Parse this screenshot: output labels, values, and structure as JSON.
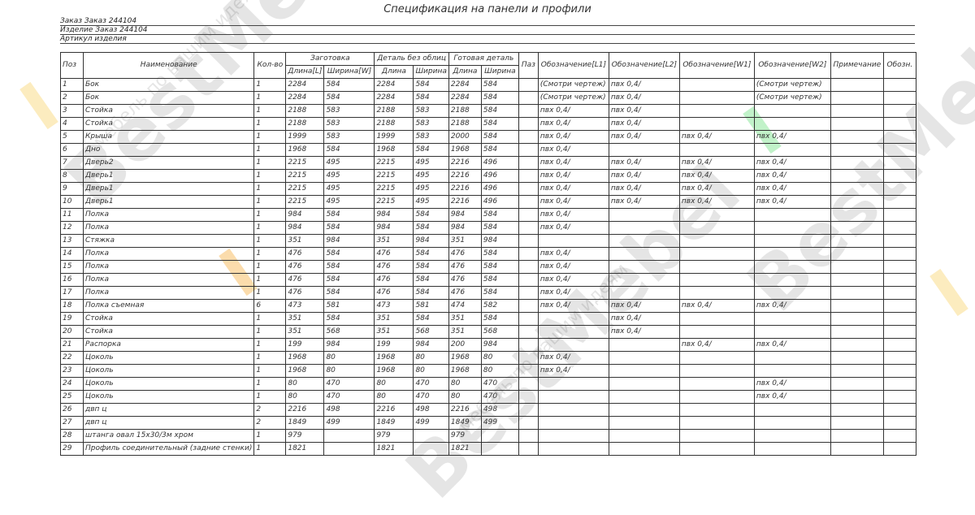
{
  "document": {
    "title": "Спецификация на панели и профили",
    "order_label": "Заказ Заказ 244104",
    "product_label": "Изделие Заказ 244104",
    "article_label": "Артикул изделия"
  },
  "watermark": {
    "brand": "BestMebel",
    "slogan": "мебель по вашим идеям",
    "colors": [
      "#f7c948",
      "#f39c12",
      "#4cd964"
    ]
  },
  "table": {
    "headers": {
      "pos": "Поз",
      "name": "Наименование",
      "qty": "Кол-во",
      "blank": "Заготовка",
      "detail": "Деталь без облиц",
      "finished": "Готовая деталь",
      "blank_len": "Длина[L]",
      "blank_wid": "Ширина[W]",
      "detail_len": "Длина",
      "detail_wid": "Ширина",
      "fin_len": "Длина",
      "fin_wid": "Ширина",
      "groove": "Паз",
      "l1": "Обозначение[L1]",
      "l2": "Обозначение[L2]",
      "w1": "Обозначение[W1]",
      "w2": "Обозначение[W2]",
      "note": "Примечание",
      "desig": "Обозн."
    },
    "rows": [
      [
        "1",
        "Бок",
        "1",
        "2284",
        "584",
        "2284",
        "584",
        "2284",
        "584",
        "",
        "(Смотри чертеж)",
        "пвх 0,4/",
        "",
        "(Смотри чертеж)",
        "",
        ""
      ],
      [
        "2",
        "Бок",
        "1",
        "2284",
        "584",
        "2284",
        "584",
        "2284",
        "584",
        "",
        "(Смотри чертеж)",
        "пвх 0,4/",
        "",
        "(Смотри чертеж)",
        "",
        ""
      ],
      [
        "3",
        "Стойка",
        "1",
        "2188",
        "583",
        "2188",
        "583",
        "2188",
        "584",
        "",
        "пвх 0,4/",
        "пвх 0,4/",
        "",
        "",
        "",
        ""
      ],
      [
        "4",
        "Стойка",
        "1",
        "2188",
        "583",
        "2188",
        "583",
        "2188",
        "584",
        "",
        "пвх 0,4/",
        "пвх 0,4/",
        "",
        "",
        "",
        ""
      ],
      [
        "5",
        "Крыша",
        "1",
        "1999",
        "583",
        "1999",
        "583",
        "2000",
        "584",
        "",
        "пвх 0,4/",
        "пвх 0,4/",
        "пвх 0,4/",
        "пвх 0,4/",
        "",
        ""
      ],
      [
        "6",
        "Дно",
        "1",
        "1968",
        "584",
        "1968",
        "584",
        "1968",
        "584",
        "",
        "пвх 0,4/",
        "",
        "",
        "",
        "",
        ""
      ],
      [
        "7",
        "Дверь2",
        "1",
        "2215",
        "495",
        "2215",
        "495",
        "2216",
        "496",
        "",
        "пвх 0,4/",
        "пвх 0,4/",
        "пвх 0,4/",
        "пвх 0,4/",
        "",
        ""
      ],
      [
        "8",
        "Дверь1",
        "1",
        "2215",
        "495",
        "2215",
        "495",
        "2216",
        "496",
        "",
        "пвх 0,4/",
        "пвх 0,4/",
        "пвх 0,4/",
        "пвх 0,4/",
        "",
        ""
      ],
      [
        "9",
        "Дверь1",
        "1",
        "2215",
        "495",
        "2215",
        "495",
        "2216",
        "496",
        "",
        "пвх 0,4/",
        "пвх 0,4/",
        "пвх 0,4/",
        "пвх 0,4/",
        "",
        ""
      ],
      [
        "10",
        "Дверь1",
        "1",
        "2215",
        "495",
        "2215",
        "495",
        "2216",
        "496",
        "",
        "пвх 0,4/",
        "пвх 0,4/",
        "пвх 0,4/",
        "пвх 0,4/",
        "",
        ""
      ],
      [
        "11",
        "Полка",
        "1",
        "984",
        "584",
        "984",
        "584",
        "984",
        "584",
        "",
        "пвх 0,4/",
        "",
        "",
        "",
        "",
        ""
      ],
      [
        "12",
        "Полка",
        "1",
        "984",
        "584",
        "984",
        "584",
        "984",
        "584",
        "",
        "пвх 0,4/",
        "",
        "",
        "",
        "",
        ""
      ],
      [
        "13",
        "Стяжка",
        "1",
        "351",
        "984",
        "351",
        "984",
        "351",
        "984",
        "",
        "",
        "",
        "",
        "",
        "",
        ""
      ],
      [
        "14",
        "Полка",
        "1",
        "476",
        "584",
        "476",
        "584",
        "476",
        "584",
        "",
        "пвх 0,4/",
        "",
        "",
        "",
        "",
        ""
      ],
      [
        "15",
        "Полка",
        "1",
        "476",
        "584",
        "476",
        "584",
        "476",
        "584",
        "",
        "пвх 0,4/",
        "",
        "",
        "",
        "",
        ""
      ],
      [
        "16",
        "Полка",
        "1",
        "476",
        "584",
        "476",
        "584",
        "476",
        "584",
        "",
        "пвх 0,4/",
        "",
        "",
        "",
        "",
        ""
      ],
      [
        "17",
        "Полка",
        "1",
        "476",
        "584",
        "476",
        "584",
        "476",
        "584",
        "",
        "пвх 0,4/",
        "",
        "",
        "",
        "",
        ""
      ],
      [
        "18",
        "Полка съемная",
        "6",
        "473",
        "581",
        "473",
        "581",
        "474",
        "582",
        "",
        "пвх 0,4/",
        "пвх 0,4/",
        "пвх 0,4/",
        "пвх 0,4/",
        "",
        ""
      ],
      [
        "19",
        "Стойка",
        "1",
        "351",
        "584",
        "351",
        "584",
        "351",
        "584",
        "",
        "",
        "пвх 0,4/",
        "",
        "",
        "",
        ""
      ],
      [
        "20",
        "Стойка",
        "1",
        "351",
        "568",
        "351",
        "568",
        "351",
        "568",
        "",
        "",
        "пвх 0,4/",
        "",
        "",
        "",
        ""
      ],
      [
        "21",
        "Распорка",
        "1",
        "199",
        "984",
        "199",
        "984",
        "200",
        "984",
        "",
        "",
        "",
        "пвх 0,4/",
        "пвх 0,4/",
        "",
        ""
      ],
      [
        "22",
        "Цоколь",
        "1",
        "1968",
        "80",
        "1968",
        "80",
        "1968",
        "80",
        "",
        "пвх 0,4/",
        "",
        "",
        "",
        "",
        ""
      ],
      [
        "23",
        "Цоколь",
        "1",
        "1968",
        "80",
        "1968",
        "80",
        "1968",
        "80",
        "",
        "пвх 0,4/",
        "",
        "",
        "",
        "",
        ""
      ],
      [
        "24",
        "Цоколь",
        "1",
        "80",
        "470",
        "80",
        "470",
        "80",
        "470",
        "",
        "",
        "",
        "",
        "пвх 0,4/",
        "",
        ""
      ],
      [
        "25",
        "Цоколь",
        "1",
        "80",
        "470",
        "80",
        "470",
        "80",
        "470",
        "",
        "",
        "",
        "",
        "пвх 0,4/",
        "",
        ""
      ],
      [
        "26",
        "двп ц",
        "2",
        "2216",
        "498",
        "2216",
        "498",
        "2216",
        "498",
        "",
        "",
        "",
        "",
        "",
        "",
        ""
      ],
      [
        "27",
        "двп ц",
        "2",
        "1849",
        "499",
        "1849",
        "499",
        "1849",
        "499",
        "",
        "",
        "",
        "",
        "",
        "",
        ""
      ],
      [
        "28",
        "штанга овал 15х30/3м хром",
        "1",
        "979",
        "",
        "979",
        "",
        "979",
        "",
        "",
        "",
        "",
        "",
        "",
        "",
        ""
      ],
      [
        "29",
        "Профиль соединительный (задние стенки)",
        "1",
        "1821",
        "",
        "1821",
        "",
        "1821",
        "",
        "",
        "",
        "",
        "",
        "",
        "",
        ""
      ]
    ]
  }
}
